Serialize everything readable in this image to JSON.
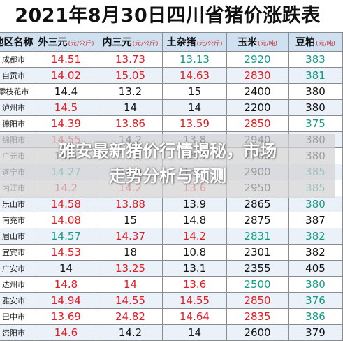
{
  "title": "2021年8月30日四川省猪价涨跌表",
  "headers": [
    {
      "label": "地区名称",
      "unit": ""
    },
    {
      "label": "外三元",
      "unit": "(元/公斤)"
    },
    {
      "label": "内三元",
      "unit": "(元/公斤)"
    },
    {
      "label": "土杂猪",
      "unit": "(元/公斤)"
    },
    {
      "label": "玉米",
      "unit": "(元/吨)"
    },
    {
      "label": "豆粕",
      "unit": "(元/吨)"
    }
  ],
  "colors": {
    "red": "#e11b22",
    "teal": "#159a85",
    "black": "#111111",
    "header_bg": "#cfe0f1",
    "stripe": "#eaf1f9"
  },
  "rows": [
    {
      "city": "成都市",
      "cells": [
        {
          "v": "14.51",
          "c": "red"
        },
        {
          "v": "13.73",
          "c": "red"
        },
        {
          "v": "13.13",
          "c": "teal"
        },
        {
          "v": "2920",
          "c": "teal"
        },
        {
          "v": "383",
          "c": "teal"
        }
      ]
    },
    {
      "city": "自贡市",
      "cells": [
        {
          "v": "14.02",
          "c": "red"
        },
        {
          "v": "15.05",
          "c": "red"
        },
        {
          "v": "14.63",
          "c": "red"
        },
        {
          "v": "2830",
          "c": "red"
        },
        {
          "v": "381",
          "c": "teal"
        }
      ]
    },
    {
      "city": "攀枝花市",
      "cells": [
        {
          "v": "14.4",
          "c": "black"
        },
        {
          "v": "13.2",
          "c": "black"
        },
        {
          "v": "15",
          "c": "black"
        },
        {
          "v": "2400",
          "c": "black"
        },
        {
          "v": "380",
          "c": "black"
        }
      ]
    },
    {
      "city": "泸州市",
      "cells": [
        {
          "v": "14.5",
          "c": "red"
        },
        {
          "v": "14",
          "c": "black"
        },
        {
          "v": "14",
          "c": "black"
        },
        {
          "v": "2200",
          "c": "black"
        },
        {
          "v": "380",
          "c": "black"
        }
      ]
    },
    {
      "city": "德阳市",
      "cells": [
        {
          "v": "14.39",
          "c": "red"
        },
        {
          "v": "13.86",
          "c": "red"
        },
        {
          "v": "13.59",
          "c": "red"
        },
        {
          "v": "2850",
          "c": "red"
        },
        {
          "v": "375",
          "c": "teal"
        }
      ]
    },
    {
      "city": "绵阳市",
      "cells": [
        {
          "v": "14.55",
          "c": "red"
        },
        {
          "v": "14.2",
          "c": "black"
        },
        {
          "v": "13.8",
          "c": "black"
        },
        {
          "v": "2940",
          "c": "black"
        },
        {
          "v": "380",
          "c": "black"
        }
      ]
    },
    {
      "city": "广元市",
      "cells": [
        {
          "v": "14.4",
          "c": "black"
        },
        {
          "v": "13.9",
          "c": "black"
        },
        {
          "v": "13.5",
          "c": "black"
        },
        {
          "v": "2700",
          "c": "black"
        },
        {
          "v": "380",
          "c": "black"
        }
      ]
    },
    {
      "city": "遂宁市",
      "cells": [
        {
          "v": "14.27",
          "c": "teal"
        },
        {
          "v": "13.9",
          "c": "black"
        },
        {
          "v": "13.6",
          "c": "black"
        },
        {
          "v": "2900",
          "c": "black"
        },
        {
          "v": "385",
          "c": "teal"
        }
      ]
    },
    {
      "city": "内江市",
      "cells": [
        {
          "v": "14.2",
          "c": "red"
        },
        {
          "v": "14.2",
          "c": "red"
        },
        {
          "v": "13.6",
          "c": "red"
        },
        {
          "v": "2950",
          "c": "black"
        },
        {
          "v": "385",
          "c": "teal"
        }
      ]
    },
    {
      "city": "乐山市",
      "cells": [
        {
          "v": "14.58",
          "c": "red"
        },
        {
          "v": "13.88",
          "c": "red"
        },
        {
          "v": "13.9",
          "c": "black"
        },
        {
          "v": "2865",
          "c": "black"
        },
        {
          "v": "380",
          "c": "teal"
        }
      ]
    },
    {
      "city": "南充市",
      "cells": [
        {
          "v": "14.08",
          "c": "red"
        },
        {
          "v": "15",
          "c": "black"
        },
        {
          "v": "14.8",
          "c": "black"
        },
        {
          "v": "2875",
          "c": "black"
        },
        {
          "v": "387",
          "c": "black"
        }
      ]
    },
    {
      "city": "眉山市",
      "cells": [
        {
          "v": "14.57",
          "c": "teal"
        },
        {
          "v": "14.37",
          "c": "red"
        },
        {
          "v": "14.2",
          "c": "red"
        },
        {
          "v": "2831",
          "c": "teal"
        },
        {
          "v": "382",
          "c": "teal"
        }
      ]
    },
    {
      "city": "宜宾市",
      "cells": [
        {
          "v": "14.53",
          "c": "red"
        },
        {
          "v": "18",
          "c": "black"
        },
        {
          "v": "10.8",
          "c": "black"
        },
        {
          "v": "2301",
          "c": "black"
        },
        {
          "v": "382",
          "c": "black"
        }
      ]
    },
    {
      "city": "广安市",
      "cells": [
        {
          "v": "14",
          "c": "black"
        },
        {
          "v": "13.25",
          "c": "red"
        },
        {
          "v": "13.1",
          "c": "black"
        },
        {
          "v": "2355",
          "c": "black"
        },
        {
          "v": "405",
          "c": "black"
        }
      ]
    },
    {
      "city": "达州市",
      "cells": [
        {
          "v": "14.8",
          "c": "red"
        },
        {
          "v": "14",
          "c": "red"
        },
        {
          "v": "13.6",
          "c": "red"
        },
        {
          "v": "2500",
          "c": "teal"
        },
        {
          "v": "380",
          "c": "teal"
        }
      ]
    },
    {
      "city": "雅安市",
      "cells": [
        {
          "v": "14.94",
          "c": "red"
        },
        {
          "v": "14.55",
          "c": "red"
        },
        {
          "v": "14.55",
          "c": "red"
        },
        {
          "v": "2850",
          "c": "red"
        },
        {
          "v": "376",
          "c": "teal"
        }
      ]
    },
    {
      "city": "巴中市",
      "cells": [
        {
          "v": "13.69",
          "c": "red"
        },
        {
          "v": "24.82",
          "c": "red"
        },
        {
          "v": "14.64",
          "c": "red"
        },
        {
          "v": "2835",
          "c": "red"
        },
        {
          "v": "386",
          "c": "teal"
        }
      ]
    },
    {
      "city": "资阳市",
      "cells": [
        {
          "v": "14.6",
          "c": "red"
        },
        {
          "v": "14.2",
          "c": "black"
        },
        {
          "v": "14",
          "c": "black"
        },
        {
          "v": "2600",
          "c": "black"
        },
        {
          "v": "379",
          "c": "black"
        }
      ]
    }
  ],
  "overlay": {
    "line1": "雅安最新猪价行情揭秘，市场",
    "line2": "走势分析与预测"
  }
}
